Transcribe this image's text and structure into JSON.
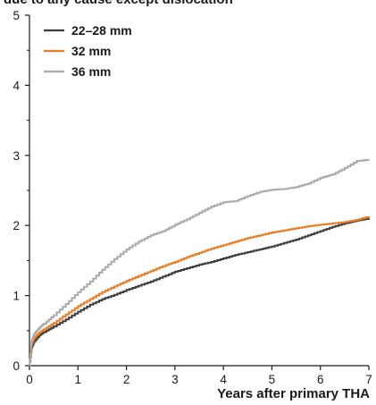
{
  "chart_data": {
    "type": "line",
    "title": "due to any cause except dislocation",
    "xlabel": "Years after primary THA",
    "ylabel": "",
    "xlim": [
      0,
      7
    ],
    "ylim": [
      0,
      5
    ],
    "x_ticks": [
      0,
      1,
      2,
      3,
      4,
      5,
      6,
      7
    ],
    "y_ticks": [
      0,
      1,
      2,
      3,
      4,
      5
    ],
    "grid": false,
    "legend_position": "top-left",
    "series": [
      {
        "name": "22–28 mm",
        "color": "#3d3d3d",
        "points": [
          [
            0,
            0
          ],
          [
            0.04,
            0.25
          ],
          [
            0.1,
            0.35
          ],
          [
            0.2,
            0.43
          ],
          [
            0.3,
            0.48
          ],
          [
            0.5,
            0.56
          ],
          [
            0.75,
            0.66
          ],
          [
            1.0,
            0.77
          ],
          [
            1.25,
            0.87
          ],
          [
            1.5,
            0.95
          ],
          [
            1.75,
            1.01
          ],
          [
            2.0,
            1.08
          ],
          [
            2.25,
            1.14
          ],
          [
            2.5,
            1.2
          ],
          [
            2.75,
            1.27
          ],
          [
            3.0,
            1.34
          ],
          [
            3.25,
            1.39
          ],
          [
            3.5,
            1.44
          ],
          [
            3.75,
            1.48
          ],
          [
            4.0,
            1.53
          ],
          [
            4.25,
            1.58
          ],
          [
            4.5,
            1.62
          ],
          [
            4.75,
            1.66
          ],
          [
            5.0,
            1.7
          ],
          [
            5.25,
            1.75
          ],
          [
            5.5,
            1.8
          ],
          [
            5.75,
            1.86
          ],
          [
            6.0,
            1.92
          ],
          [
            6.25,
            1.98
          ],
          [
            6.5,
            2.03
          ],
          [
            6.75,
            2.07
          ],
          [
            7.0,
            2.1
          ]
        ]
      },
      {
        "name": "32 mm",
        "color": "#e87e24",
        "points": [
          [
            0,
            0
          ],
          [
            0.04,
            0.3
          ],
          [
            0.1,
            0.4
          ],
          [
            0.2,
            0.47
          ],
          [
            0.3,
            0.52
          ],
          [
            0.5,
            0.61
          ],
          [
            0.75,
            0.73
          ],
          [
            1.0,
            0.85
          ],
          [
            1.25,
            0.95
          ],
          [
            1.5,
            1.05
          ],
          [
            1.75,
            1.13
          ],
          [
            2.0,
            1.21
          ],
          [
            2.25,
            1.28
          ],
          [
            2.5,
            1.35
          ],
          [
            2.75,
            1.42
          ],
          [
            3.0,
            1.48
          ],
          [
            3.25,
            1.55
          ],
          [
            3.5,
            1.61
          ],
          [
            3.75,
            1.67
          ],
          [
            4.0,
            1.72
          ],
          [
            4.25,
            1.77
          ],
          [
            4.5,
            1.82
          ],
          [
            4.75,
            1.86
          ],
          [
            5.0,
            1.9
          ],
          [
            5.25,
            1.93
          ],
          [
            5.5,
            1.96
          ],
          [
            5.75,
            1.99
          ],
          [
            6.0,
            2.01
          ],
          [
            6.25,
            2.03
          ],
          [
            6.5,
            2.05
          ],
          [
            6.75,
            2.08
          ],
          [
            7.0,
            2.13
          ]
        ]
      },
      {
        "name": "36 mm",
        "color": "#aaaaaa",
        "points": [
          [
            0,
            0
          ],
          [
            0.04,
            0.35
          ],
          [
            0.1,
            0.46
          ],
          [
            0.2,
            0.54
          ],
          [
            0.3,
            0.6
          ],
          [
            0.5,
            0.72
          ],
          [
            0.75,
            0.88
          ],
          [
            1.0,
            1.05
          ],
          [
            1.25,
            1.2
          ],
          [
            1.5,
            1.37
          ],
          [
            1.75,
            1.52
          ],
          [
            2.0,
            1.66
          ],
          [
            2.25,
            1.77
          ],
          [
            2.5,
            1.86
          ],
          [
            2.75,
            1.92
          ],
          [
            3.0,
            2.01
          ],
          [
            3.25,
            2.09
          ],
          [
            3.5,
            2.18
          ],
          [
            3.75,
            2.27
          ],
          [
            4.0,
            2.33
          ],
          [
            4.25,
            2.35
          ],
          [
            4.5,
            2.42
          ],
          [
            4.75,
            2.48
          ],
          [
            5.0,
            2.51
          ],
          [
            5.25,
            2.52
          ],
          [
            5.5,
            2.55
          ],
          [
            5.75,
            2.6
          ],
          [
            6.0,
            2.68
          ],
          [
            6.25,
            2.73
          ],
          [
            6.5,
            2.82
          ],
          [
            6.75,
            2.92
          ],
          [
            7.0,
            2.94
          ]
        ]
      }
    ]
  }
}
